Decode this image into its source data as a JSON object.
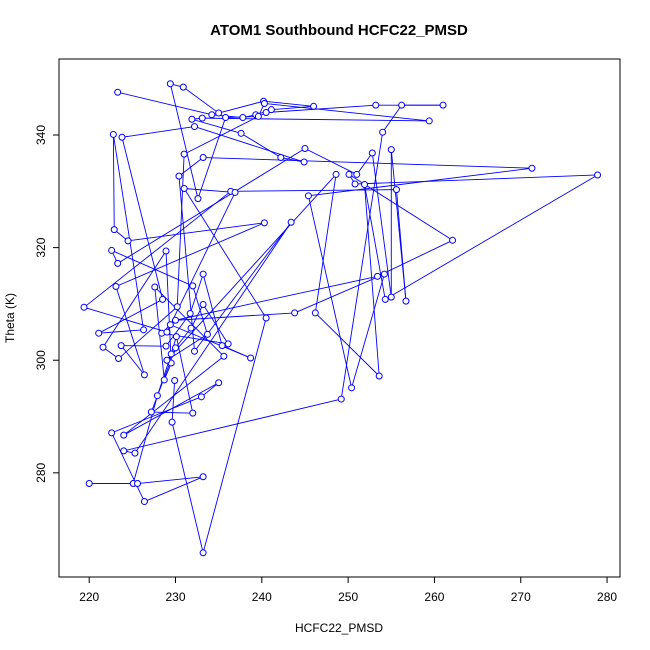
{
  "chart_data": {
    "type": "line",
    "title": "ATOM1 Southbound HCFC22_PMSD",
    "xlabel": "HCFC22_PMSD",
    "ylabel": "Theta (K)",
    "xlim": [
      216.5,
      281.5
    ],
    "ylim": [
      261.5,
      353.5
    ],
    "x_ticks": [
      220,
      230,
      240,
      250,
      260,
      270,
      280
    ],
    "y_ticks": [
      280,
      300,
      320,
      340
    ],
    "color": "#0000ff",
    "marker": "open-circle",
    "series": [
      {
        "points": [
          [
            223.3,
            347.6
          ],
          [
            234.2,
            343.6
          ],
          [
            237.8,
            343.1
          ],
          [
            239.3,
            343.6
          ],
          [
            241.1,
            344.5
          ],
          [
            246.0,
            345.1
          ],
          [
            240.2,
            346.0
          ],
          [
            235.0,
            343.9
          ],
          [
            230.9,
            348.5
          ],
          [
            229.4,
            349.1
          ],
          [
            232.6,
            328.7
          ],
          [
            235.8,
            343.1
          ],
          [
            239.6,
            343.3
          ],
          [
            240.3,
            345.6
          ],
          [
            259.4,
            342.5
          ],
          [
            233.1,
            343.0
          ],
          [
            231.9,
            342.8
          ],
          [
            237.6,
            340.3
          ],
          [
            242.2,
            336.0
          ],
          [
            244.9,
            335.2
          ],
          [
            232.2,
            341.5
          ],
          [
            223.8,
            339.6
          ],
          [
            228.5,
            310.8
          ],
          [
            221.1,
            304.8
          ],
          [
            226.3,
            305.4
          ],
          [
            222.8,
            340.1
          ],
          [
            222.9,
            323.2
          ],
          [
            224.5,
            321.2
          ],
          [
            240.3,
            324.4
          ],
          [
            223.1,
            313.1
          ],
          [
            226.4,
            297.4
          ],
          [
            223.7,
            302.6
          ],
          [
            228.9,
            302.5
          ],
          [
            231.7,
            308.3
          ],
          [
            233.2,
            315.3
          ],
          [
            235.4,
            302.6
          ],
          [
            238.7,
            300.4
          ],
          [
            229.4,
            306.3
          ],
          [
            228.4,
            304.8
          ],
          [
            236.1,
            302.9
          ],
          [
            233.2,
            309.9
          ],
          [
            231.8,
            305.7
          ],
          [
            230.0,
            302.2
          ],
          [
            227.2,
            290.8
          ],
          [
            232.0,
            290.6
          ],
          [
            230.1,
            304.2
          ],
          [
            229.5,
            301.1
          ],
          [
            227.9,
            293.7
          ],
          [
            225.1,
            278.1
          ],
          [
            220.0,
            278.1
          ],
          [
            225.6,
            278.1
          ],
          [
            233.2,
            279.3
          ],
          [
            226.4,
            274.9
          ],
          [
            222.6,
            287.1
          ],
          [
            233.0,
            293.5
          ],
          [
            235.0,
            296.0
          ],
          [
            224.0,
            286.7
          ],
          [
            235.6,
            300.7
          ],
          [
            227.6,
            313.0
          ],
          [
            228.7,
            296.5
          ],
          [
            229.5,
            299.5
          ],
          [
            228.9,
            319.4
          ],
          [
            221.6,
            302.3
          ],
          [
            223.4,
            300.3
          ],
          [
            230.2,
            309.5
          ],
          [
            231.0,
            336.6
          ],
          [
            240.5,
            344.0
          ],
          [
            253.2,
            345.3
          ],
          [
            261.0,
            345.3
          ],
          [
            256.2,
            345.3
          ],
          [
            254.0,
            340.5
          ],
          [
            249.2,
            293.1
          ],
          [
            224.0,
            283.9
          ],
          [
            225.3,
            283.5
          ],
          [
            243.4,
            324.5
          ],
          [
            232.2,
            301.6
          ],
          [
            230.4,
            332.7
          ],
          [
            233.2,
            336.0
          ],
          [
            271.3,
            334.1
          ],
          [
            245.4,
            329.2
          ],
          [
            250.4,
            295.1
          ],
          [
            254.2,
            315.3
          ],
          [
            243.8,
            308.4
          ],
          [
            230.0,
            307.1
          ],
          [
            253.4,
            314.9
          ],
          [
            262.1,
            321.3
          ],
          [
            250.1,
            333.0
          ],
          [
            250.8,
            331.3
          ],
          [
            278.9,
            332.9
          ],
          [
            254.3,
            310.8
          ],
          [
            251.9,
            331.2
          ],
          [
            253.6,
            297.2
          ],
          [
            246.2,
            308.4
          ],
          [
            248.6,
            333.0
          ],
          [
            229.0,
            300.0
          ],
          [
            233.7,
            304.6
          ],
          [
            232.0,
            313.2
          ],
          [
            222.6,
            319.5
          ],
          [
            223.3,
            317.2
          ],
          [
            245.0,
            337.6
          ],
          [
            251.0,
            333.0
          ],
          [
            252.8,
            336.8
          ],
          [
            255.0,
            311.2
          ],
          [
            255.0,
            337.4
          ],
          [
            256.7,
            310.5
          ],
          [
            255.6,
            330.3
          ],
          [
            236.4,
            330.0
          ],
          [
            219.4,
            309.4
          ],
          [
            229.0,
            305.0
          ],
          [
            236.9,
            329.8
          ],
          [
            231.0,
            330.5
          ],
          [
            240.5,
            307.5
          ],
          [
            233.2,
            265.8
          ],
          [
            229.6,
            289.0
          ],
          [
            229.9,
            296.4
          ]
        ]
      }
    ]
  }
}
